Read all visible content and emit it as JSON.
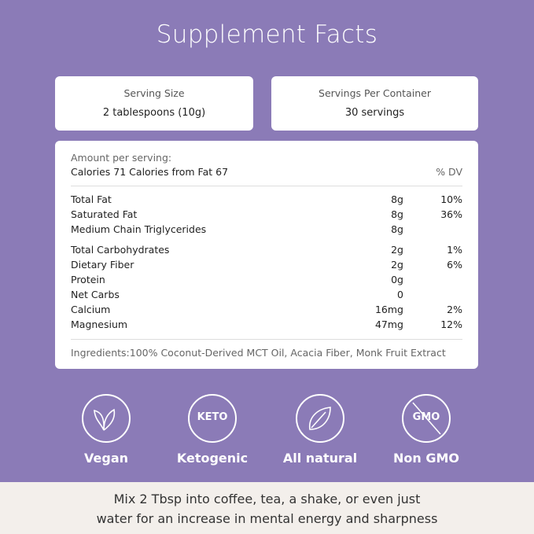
{
  "title": "Supplement Facts",
  "serving": {
    "label": "Serving Size",
    "value": "2 tablespoons (10g)"
  },
  "servings_per_container": {
    "label": "Servings Per Container",
    "value": "30 servings"
  },
  "facts": {
    "amount_label": "Amount per serving:",
    "calories": "Calories 71 Calories from Fat 67",
    "dv_header": "% DV",
    "groups": [
      [
        {
          "name": "Total Fat",
          "amount": "8g",
          "dv": "10%"
        },
        {
          "name": "Saturated Fat",
          "amount": "8g",
          "dv": "36%"
        },
        {
          "name": "Medium Chain Triglycerides",
          "amount": "8g"
        }
      ],
      [
        {
          "name": "Total Carbohydrates",
          "amount": "2g",
          "dv": "1%"
        },
        {
          "name": "Dietary Fiber",
          "amount": "2g",
          "dv": "6%"
        },
        {
          "name": "Protein",
          "amount": "0g"
        },
        {
          "name": "Net Carbs",
          "amount": "0"
        },
        {
          "name": "Calcium",
          "amount": "16mg",
          "dv": "2%"
        },
        {
          "name": "Magnesium",
          "amount": "47mg",
          "dv": "12%"
        }
      ]
    ],
    "ingredients": "Ingredients:100% Coconut-Derived MCT Oil, Acacia Fiber, Monk Fruit Extract"
  },
  "badges": [
    {
      "label": "Vegan"
    },
    {
      "label": "Ketogenic",
      "icon_text": "KETO"
    },
    {
      "label": "All natural"
    },
    {
      "label": "Non GMO",
      "icon_text": "GMO"
    }
  ],
  "footer": [
    "Mix 2 Tbsp into coffee, tea, a shake, or even just",
    "water for an increase in mental energy and sharpness"
  ]
}
